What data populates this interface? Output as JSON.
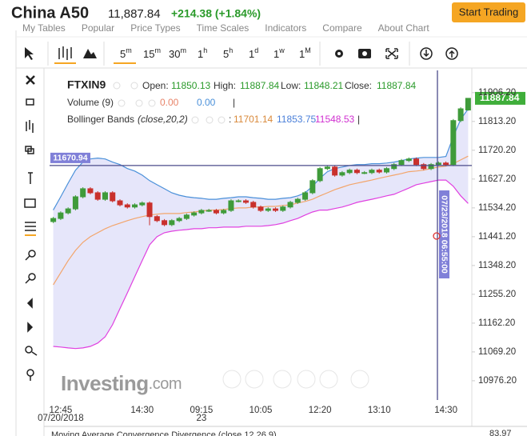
{
  "header": {
    "title": "China A50",
    "price": "11,887.84",
    "change": "+214.38 (+1.84%)",
    "button": "Start Trading"
  },
  "menu": [
    "My Tables",
    "Popular",
    "Price Types",
    "Time Scales",
    "Indicators",
    "Compare",
    "About Chart"
  ],
  "intervals": [
    {
      "value": "5",
      "unit": "m"
    },
    {
      "value": "15",
      "unit": "m"
    },
    {
      "value": "30",
      "unit": "m"
    },
    {
      "value": "1",
      "unit": "h"
    },
    {
      "value": "5",
      "unit": "h"
    },
    {
      "value": "1",
      "unit": "d"
    },
    {
      "value": "1",
      "unit": "w"
    },
    {
      "value": "1",
      "unit": "M"
    }
  ],
  "legend": {
    "symbol": "FTXIN9",
    "open": "Open:",
    "high": "High:",
    "low": "Low:",
    "close": "Close:",
    "volume": "Volume (9)",
    "volume_values": [
      "0.00",
      "0.00"
    ],
    "separator": "|",
    "bands": "Bollinger Bands",
    "bands_params": "(close,20,2)",
    "colon": ":"
  },
  "chart_data": {
    "type": "candlestick",
    "categories": [
      null,
      "12:45",
      null,
      null,
      null,
      null,
      null,
      null,
      null,
      null,
      null,
      null,
      "14:30",
      null,
      null,
      null,
      null,
      null,
      null,
      null,
      "09:15",
      null,
      null,
      null,
      null,
      null,
      null,
      null,
      "10:05",
      null,
      null,
      null,
      null,
      null,
      null,
      null,
      "12:20",
      null,
      null,
      null,
      null,
      null,
      null,
      null,
      "13:10",
      null,
      null,
      null,
      null,
      null,
      null,
      null,
      null,
      "14:30",
      null,
      null,
      null
    ],
    "day_labels": [
      null,
      "07/20/2018",
      null,
      null,
      null,
      null,
      null,
      null,
      null,
      null,
      null,
      null,
      null,
      null,
      null,
      null,
      null,
      null,
      null,
      null,
      "23",
      null,
      null,
      null,
      null,
      null,
      null,
      null,
      null,
      null,
      null,
      null,
      null,
      null,
      null,
      null,
      null,
      null,
      null,
      null,
      null,
      null,
      null,
      null,
      null,
      null,
      null,
      null,
      null,
      null,
      null,
      null,
      null,
      null,
      null,
      null,
      null
    ],
    "open": [
      11490,
      11500,
      11518,
      11531,
      11570,
      11596,
      11583,
      11562,
      11583,
      11557,
      11544,
      11537,
      11544,
      11550,
      11506,
      11493,
      11480,
      11493,
      11500,
      11511,
      11518,
      11526,
      11526,
      11518,
      11526,
      11557,
      11557,
      11552,
      11537,
      11526,
      11531,
      11526,
      11537,
      11552,
      11562,
      11583,
      11622,
      11661,
      11666,
      11640,
      11648,
      11656,
      11648,
      11648,
      11656,
      11650,
      11661,
      11674,
      11687,
      11692,
      11674,
      11661,
      11674,
      11679,
      11674,
      11816,
      11850.13
    ],
    "high": [
      11505,
      11523,
      11536,
      11575,
      11601,
      11601,
      11588,
      11588,
      11588,
      11562,
      11549,
      11549,
      11555,
      11555,
      11511,
      11498,
      11498,
      11505,
      11516,
      11523,
      11531,
      11531,
      11531,
      11531,
      11562,
      11562,
      11562,
      11557,
      11542,
      11536,
      11536,
      11542,
      11557,
      11567,
      11588,
      11627,
      11666,
      11671,
      11671,
      11653,
      11661,
      11661,
      11653,
      11661,
      11661,
      11666,
      11679,
      11692,
      11697,
      11697,
      11679,
      11679,
      11684,
      11684,
      11821,
      11859,
      11887.84
    ],
    "low": [
      11485,
      11495,
      11513,
      11526,
      11565,
      11578,
      11557,
      11557,
      11552,
      11539,
      11532,
      11532,
      11539,
      11478,
      11488,
      11475,
      11475,
      11488,
      11495,
      11506,
      11513,
      11521,
      11513,
      11513,
      11521,
      11552,
      11547,
      11532,
      11521,
      11521,
      11521,
      11521,
      11532,
      11547,
      11557,
      11578,
      11617,
      11656,
      11635,
      11635,
      11643,
      11643,
      11643,
      11643,
      11645,
      11645,
      11656,
      11669,
      11682,
      11669,
      11656,
      11656,
      11669,
      11669,
      11669,
      11811,
      11848.21
    ],
    "close": [
      11500,
      11518,
      11531,
      11570,
      11596,
      11583,
      11562,
      11583,
      11557,
      11544,
      11537,
      11544,
      11550,
      11506,
      11493,
      11480,
      11493,
      11500,
      11511,
      11518,
      11526,
      11526,
      11518,
      11526,
      11557,
      11557,
      11552,
      11537,
      11526,
      11531,
      11526,
      11537,
      11552,
      11562,
      11583,
      11622,
      11661,
      11666,
      11640,
      11648,
      11656,
      11648,
      11648,
      11656,
      11650,
      11661,
      11674,
      11687,
      11692,
      11674,
      11661,
      11674,
      11679,
      11674,
      11816,
      11854,
      11887.84
    ],
    "up_color": "#3f9b3a",
    "down_color": "#c9302c",
    "bands": [
      {
        "color": "#4a90d9",
        "values": [
          11527,
          11570,
          11614,
          11656,
          11682,
          11692,
          11695,
          11692,
          11682,
          11674,
          11661,
          11653,
          11640,
          11622,
          11609,
          11596,
          11583,
          11575,
          11570,
          11567,
          11565,
          11562,
          11562,
          11565,
          11567,
          11570,
          11570,
          11567,
          11565,
          11562,
          11562,
          11565,
          11567,
          11573,
          11583,
          11604,
          11630,
          11651,
          11661,
          11666,
          11671,
          11674,
          11674,
          11677,
          11677,
          11679,
          11682,
          11687,
          11692,
          11695,
          11697,
          11697,
          11697,
          11700,
          11764,
          11820,
          11853.75
        ]
      },
      {
        "color": "#f3a56b",
        "values": [
          11286,
          11325,
          11364,
          11397,
          11423,
          11441,
          11454,
          11467,
          11477,
          11485,
          11493,
          11500,
          11506,
          11511,
          11514,
          11516,
          11516,
          11516,
          11519,
          11521,
          11524,
          11527,
          11527,
          11529,
          11532,
          11534,
          11534,
          11537,
          11537,
          11539,
          11539,
          11542,
          11544,
          11550,
          11555,
          11562,
          11573,
          11583,
          11593,
          11601,
          11609,
          11614,
          11619,
          11624,
          11630,
          11635,
          11640,
          11645,
          11651,
          11653,
          11656,
          11661,
          11666,
          11669,
          11677,
          11689,
          11701.14
        ]
      },
      {
        "color": "#e040e0",
        "values": [
          11087,
          11085,
          11082,
          11080,
          11082,
          11087,
          11098,
          11118,
          11157,
          11209,
          11260,
          11312,
          11364,
          11415,
          11441,
          11454,
          11459,
          11462,
          11464,
          11467,
          11467,
          11470,
          11470,
          11472,
          11472,
          11472,
          11475,
          11475,
          11475,
          11477,
          11480,
          11485,
          11493,
          11500,
          11511,
          11521,
          11527,
          11527,
          11532,
          11537,
          11544,
          11552,
          11557,
          11562,
          11567,
          11573,
          11578,
          11588,
          11598,
          11609,
          11614,
          11619,
          11624,
          11624,
          11604,
          11573,
          11548.53
        ]
      }
    ],
    "band_fill": "#e6e6fa",
    "ylim": [
      10914,
      11978
    ],
    "yticks": [
      {
        "value": 11906.2,
        "label": "11906.20"
      },
      {
        "value": 11813.2,
        "label": "11813.20"
      },
      {
        "value": 11720.2,
        "label": "11720.20"
      },
      {
        "value": 11627.2,
        "label": "11627.20"
      },
      {
        "value": 11534.2,
        "label": "11534.20"
      },
      {
        "value": 11441.2,
        "label": "11441.20"
      },
      {
        "value": 11348.2,
        "label": "11348.20"
      },
      {
        "value": 11255.2,
        "label": "11255.20"
      },
      {
        "value": 11162.2,
        "label": "11162.20"
      },
      {
        "value": 11069.2,
        "label": "11069.20"
      },
      {
        "value": 10976.2,
        "label": "10976.20"
      }
    ],
    "grid": false,
    "crosshair": {
      "value": 11670.94,
      "time": "07/23/2018 06:55:00"
    }
  },
  "lower_panel": {
    "title": "Moving Average Convergence Divergence (close,12,26,9)",
    "value": "83.97"
  },
  "watermark": {
    "brand": "Investing",
    "domain": ".com"
  }
}
